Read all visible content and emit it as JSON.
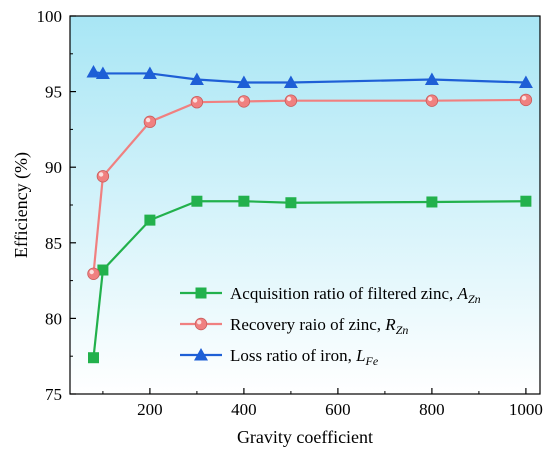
{
  "chart_data": {
    "type": "line",
    "title": "",
    "xlabel": "Gravity coefficient",
    "ylabel": "Efficiency (%)",
    "xlim": [
      30,
      1030
    ],
    "ylim": [
      75,
      100
    ],
    "xticks": [
      200,
      400,
      600,
      800,
      1000
    ],
    "yticks": [
      75,
      80,
      85,
      90,
      95,
      100
    ],
    "background_gradient": [
      "#a8e6f5",
      "#ffffff"
    ],
    "legend_position": "bottom-right",
    "series": [
      {
        "name": "Acquisition ratio of filtered zinc, ",
        "symbol": "A",
        "subscript": "Zn",
        "color": "#22b14c",
        "marker": "square",
        "x": [
          80,
          100,
          200,
          300,
          400,
          500,
          800,
          1000
        ],
        "y": [
          77.4,
          83.2,
          86.5,
          87.75,
          87.75,
          87.65,
          87.7,
          87.75
        ]
      },
      {
        "name": "Recovery raio of zinc, ",
        "symbol": "R",
        "subscript": "Zn",
        "color": "#f08080",
        "marker": "circle",
        "x": [
          80,
          100,
          200,
          300,
          400,
          500,
          800,
          1000
        ],
        "y": [
          82.95,
          89.4,
          93.0,
          94.3,
          94.35,
          94.4,
          94.4,
          94.45
        ]
      },
      {
        "name": "Loss ratio of iron, ",
        "symbol": "L",
        "subscript": "Fe",
        "color": "#1e5fd6",
        "marker": "triangle",
        "x": [
          80,
          100,
          200,
          300,
          400,
          500,
          800,
          1000
        ],
        "y": [
          96.3,
          96.2,
          96.2,
          95.8,
          95.6,
          95.6,
          95.8,
          95.6
        ]
      }
    ]
  }
}
